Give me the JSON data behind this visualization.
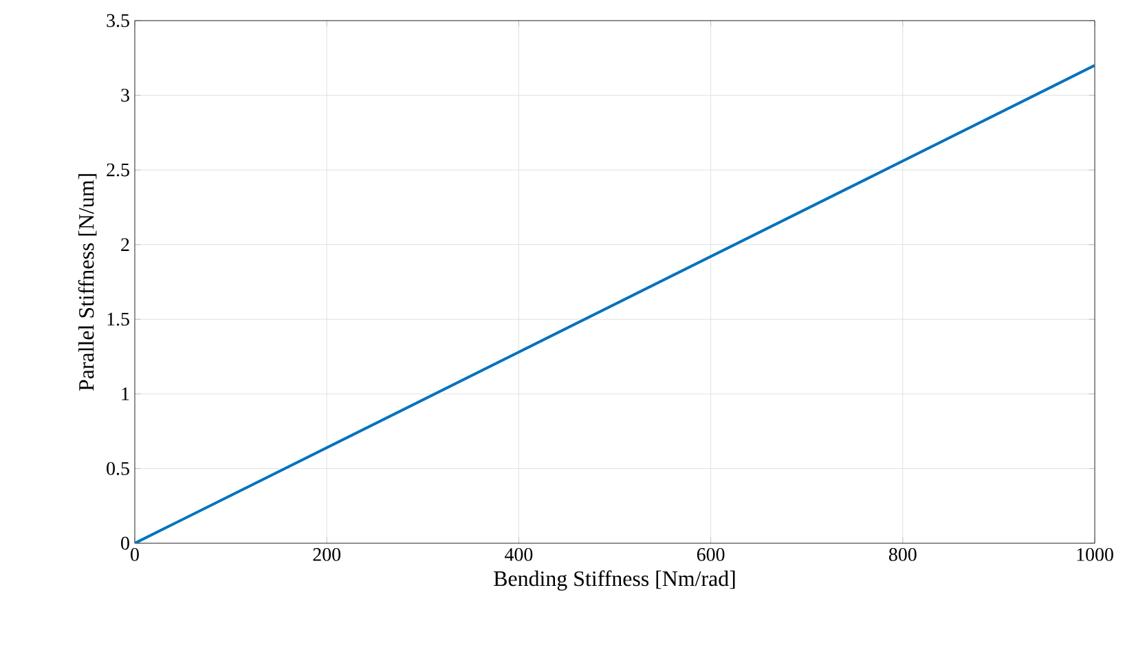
{
  "chart_data": {
    "type": "line",
    "xlabel": "Bending Stiffness [Nm/rad]",
    "ylabel": "Parallel Stiffness [N/um]",
    "x": [
      0,
      1000
    ],
    "series": [
      {
        "color": "#0072bd",
        "values": [
          0,
          3.2
        ]
      }
    ],
    "xlim": [
      0,
      1000
    ],
    "xticks": [
      0,
      200,
      400,
      600,
      800,
      1000
    ],
    "ylim": [
      0,
      3.5
    ],
    "yticks": [
      0,
      0.5,
      1,
      1.5,
      2,
      2.5,
      3,
      3.5
    ],
    "grid": true,
    "marker": "none",
    "line_style": "solid"
  }
}
